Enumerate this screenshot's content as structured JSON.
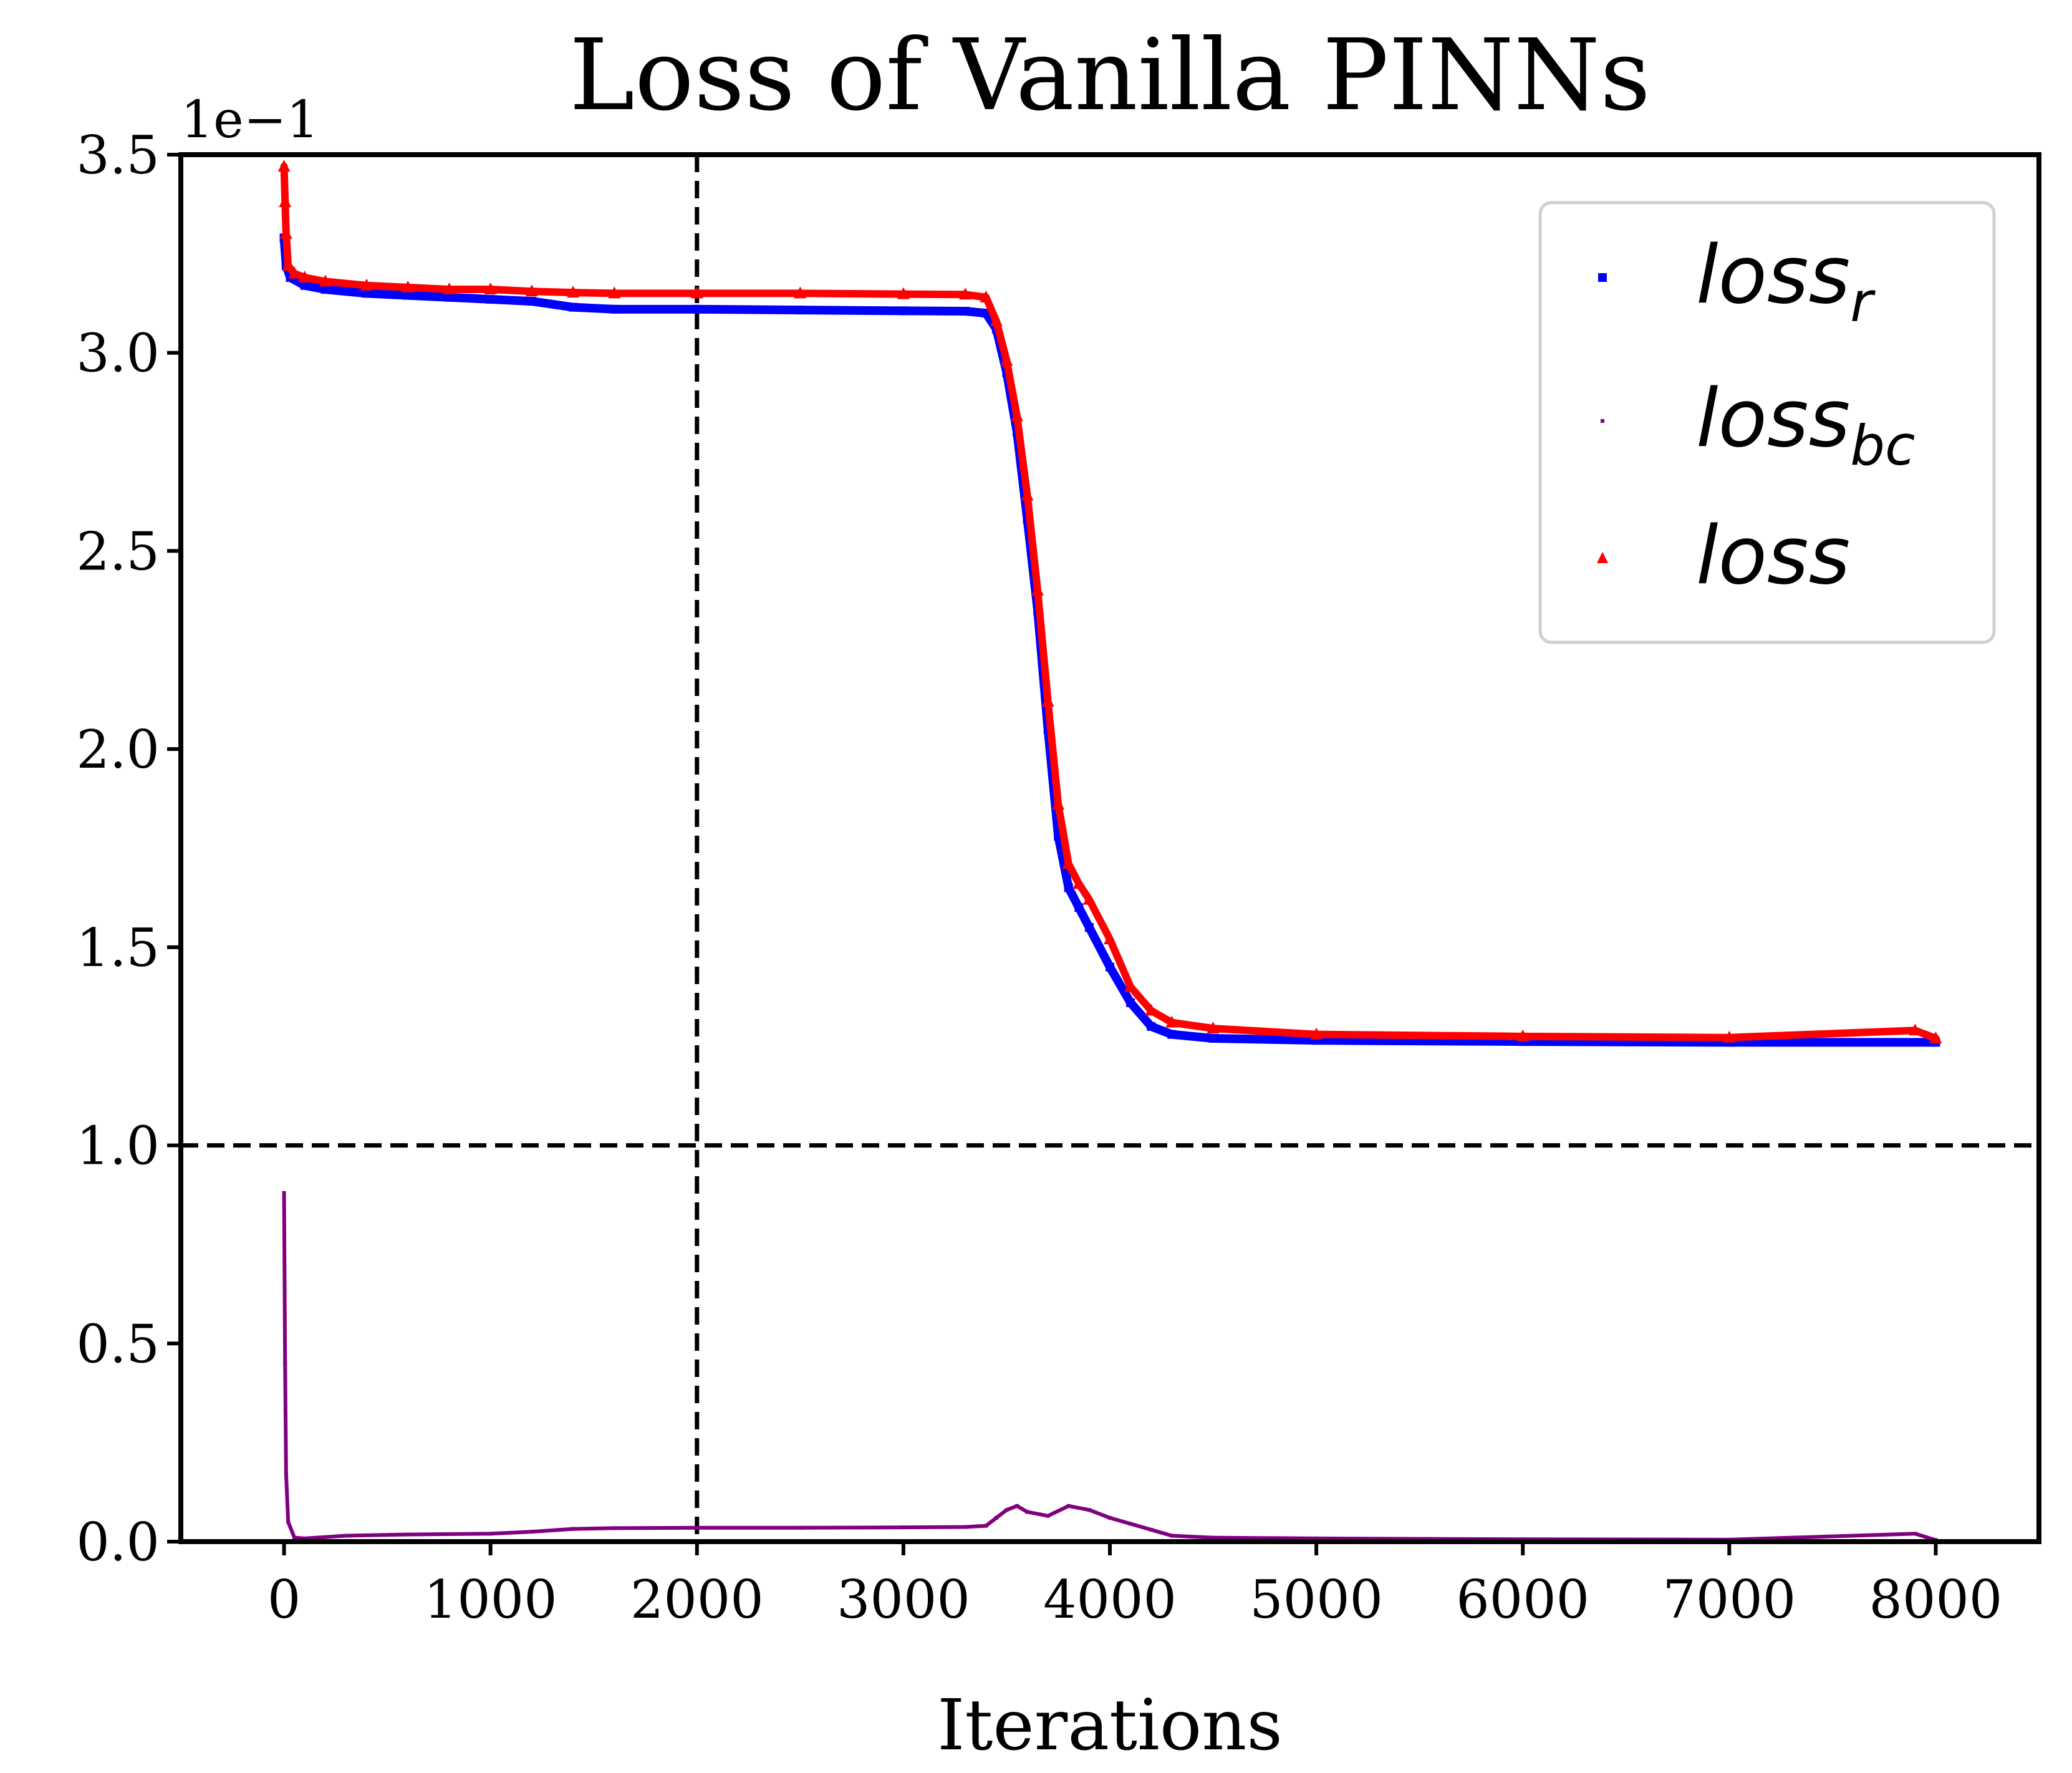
{
  "chart_data": {
    "type": "scatter",
    "title": "Loss of Vanilla PINNs",
    "xlabel": "Iterations",
    "ylabel": "",
    "offset_text": "1e−1",
    "xlim": [
      -500,
      8500
    ],
    "ylim": [
      0.0,
      3.5
    ],
    "xticks": [
      0,
      1000,
      2000,
      3000,
      4000,
      5000,
      6000,
      7000,
      8000
    ],
    "xtick_labels": [
      "0",
      "1000",
      "2000",
      "3000",
      "4000",
      "5000",
      "6000",
      "7000",
      "8000"
    ],
    "yticks": [
      0.0,
      0.5,
      1.0,
      1.5,
      2.0,
      2.5,
      3.0,
      3.5
    ],
    "ytick_labels": [
      "0.0",
      "0.5",
      "1.0",
      "1.5",
      "2.0",
      "2.5",
      "3.0",
      "3.5"
    ],
    "grid": false,
    "legend_position": "upper right",
    "reference_lines": [
      {
        "orientation": "vertical",
        "value": 2000,
        "style": "dashed",
        "color": "#000000"
      },
      {
        "orientation": "horizontal",
        "value": 1.0,
        "style": "dashed",
        "color": "#000000"
      }
    ],
    "series": [
      {
        "name": "loss_r",
        "legend_main": "loss",
        "legend_sub": "r",
        "marker": "square",
        "color": "#0000ff",
        "x": [
          0,
          10,
          30,
          100,
          200,
          400,
          600,
          800,
          1000,
          1200,
          1400,
          1600,
          2000,
          2500,
          3000,
          3300,
          3400,
          3450,
          3500,
          3550,
          3600,
          3650,
          3700,
          3750,
          3800,
          3850,
          3900,
          4000,
          4100,
          4200,
          4300,
          4500,
          5000,
          6000,
          7000,
          8000
        ],
        "y": [
          3.29,
          3.22,
          3.19,
          3.17,
          3.16,
          3.15,
          3.145,
          3.14,
          3.135,
          3.13,
          3.115,
          3.11,
          3.11,
          3.108,
          3.106,
          3.105,
          3.1,
          3.06,
          2.95,
          2.8,
          2.58,
          2.35,
          2.05,
          1.78,
          1.65,
          1.6,
          1.55,
          1.45,
          1.36,
          1.3,
          1.28,
          1.27,
          1.265,
          1.262,
          1.26,
          1.26
        ]
      },
      {
        "name": "loss_bc",
        "legend_main": "loss",
        "legend_sub": "bc",
        "marker": "pixel",
        "color": "#800080",
        "x": [
          0,
          5,
          10,
          20,
          50,
          100,
          300,
          600,
          1000,
          1200,
          1400,
          1600,
          2000,
          2500,
          3000,
          3300,
          3400,
          3450,
          3500,
          3550,
          3600,
          3700,
          3800,
          3900,
          4000,
          4100,
          4200,
          4300,
          4500,
          5000,
          6000,
          7000,
          7900,
          8000
        ],
        "y": [
          0.88,
          0.45,
          0.17,
          0.05,
          0.01,
          0.008,
          0.015,
          0.018,
          0.02,
          0.025,
          0.032,
          0.034,
          0.035,
          0.035,
          0.036,
          0.037,
          0.04,
          0.06,
          0.08,
          0.09,
          0.075,
          0.065,
          0.09,
          0.08,
          0.06,
          0.045,
          0.03,
          0.015,
          0.01,
          0.008,
          0.006,
          0.005,
          0.02,
          0.004
        ]
      },
      {
        "name": "loss",
        "legend_main": "loss",
        "legend_sub": "",
        "marker": "triangle",
        "color": "#ff0000",
        "x": [
          0,
          5,
          10,
          20,
          50,
          100,
          200,
          400,
          600,
          800,
          1000,
          1200,
          1400,
          1600,
          2000,
          2500,
          3000,
          3300,
          3400,
          3450,
          3500,
          3550,
          3600,
          3650,
          3700,
          3750,
          3800,
          3850,
          3900,
          4000,
          4100,
          4200,
          4300,
          4500,
          5000,
          6000,
          7000,
          7900,
          8000
        ],
        "y": [
          3.47,
          3.38,
          3.3,
          3.22,
          3.2,
          3.19,
          3.18,
          3.17,
          3.165,
          3.16,
          3.16,
          3.155,
          3.152,
          3.15,
          3.15,
          3.15,
          3.148,
          3.147,
          3.14,
          3.08,
          2.98,
          2.84,
          2.64,
          2.4,
          2.12,
          1.86,
          1.71,
          1.66,
          1.62,
          1.52,
          1.4,
          1.34,
          1.31,
          1.295,
          1.28,
          1.275,
          1.272,
          1.29,
          1.27
        ]
      }
    ]
  }
}
